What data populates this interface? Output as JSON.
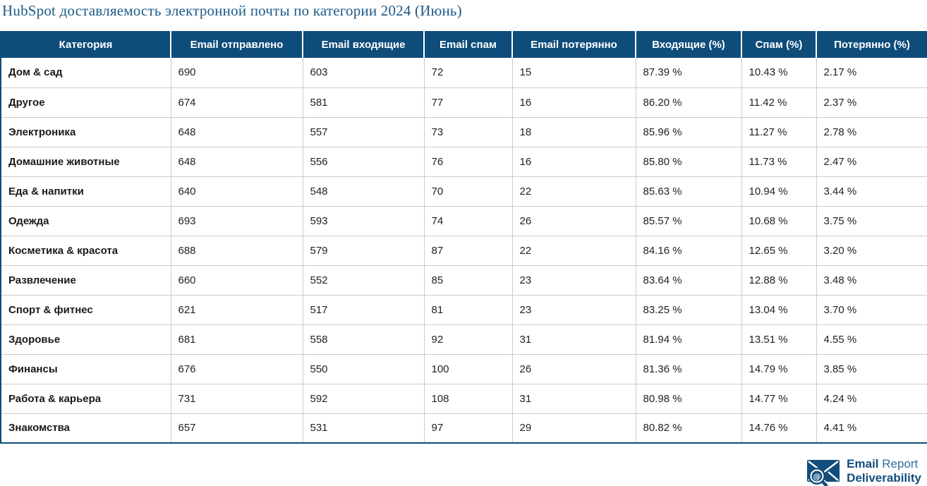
{
  "chart_data": {
    "type": "table",
    "title": "HubSpot доставляемость электронной почты по категории 2024 (Июнь)",
    "columns": [
      "Категория",
      "Email отправлено",
      "Email входящие",
      "Email спам",
      "Email потерянно",
      "Входящие (%)",
      "Спам (%)",
      "Потерянно (%)"
    ],
    "rows": [
      [
        "Дом & сад",
        690,
        603,
        72,
        15,
        "87.39 %",
        "10.43 %",
        "2.17 %"
      ],
      [
        "Другое",
        674,
        581,
        77,
        16,
        "86.20 %",
        "11.42 %",
        "2.37 %"
      ],
      [
        "Электроника",
        648,
        557,
        73,
        18,
        "85.96 %",
        "11.27 %",
        "2.78 %"
      ],
      [
        "Домашние животные",
        648,
        556,
        76,
        16,
        "85.80 %",
        "11.73 %",
        "2.47 %"
      ],
      [
        "Еда & напитки",
        640,
        548,
        70,
        22,
        "85.63 %",
        "10.94 %",
        "3.44 %"
      ],
      [
        "Одежда",
        693,
        593,
        74,
        26,
        "85.57 %",
        "10.68 %",
        "3.75 %"
      ],
      [
        "Косметика & красота",
        688,
        579,
        87,
        22,
        "84.16 %",
        "12.65 %",
        "3.20 %"
      ],
      [
        "Развлечение",
        660,
        552,
        85,
        23,
        "83.64 %",
        "12.88 %",
        "3.48 %"
      ],
      [
        "Спорт & фитнес",
        621,
        517,
        81,
        23,
        "83.25 %",
        "13.04 %",
        "3.70 %"
      ],
      [
        "Здоровье",
        681,
        558,
        92,
        31,
        "81.94 %",
        "13.51 %",
        "4.55 %"
      ],
      [
        "Финансы",
        676,
        550,
        100,
        26,
        "81.36 %",
        "14.79 %",
        "3.85 %"
      ],
      [
        "Работа & карьера",
        731,
        592,
        108,
        31,
        "80.98 %",
        "14.77 %",
        "4.24 %"
      ],
      [
        "Знакомства",
        657,
        531,
        97,
        29,
        "80.82 %",
        "14.76 %",
        "4.41 %"
      ]
    ]
  },
  "colors": {
    "header_bg": "#0e4d7a",
    "title_text": "#1d5a87",
    "grid_line": "#cccccc",
    "logo_dark_blue": "#134d7c",
    "logo_light_blue": "#2e6da4"
  },
  "logo": {
    "icon": "envelope-magnifier-at-icon",
    "email": "Email",
    "report": " Report",
    "deliverability": "Deliverability"
  }
}
